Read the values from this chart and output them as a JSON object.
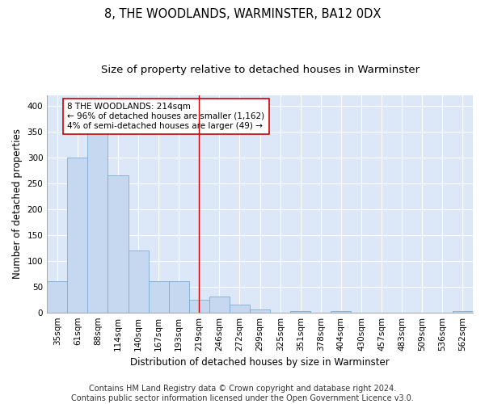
{
  "title": "8, THE WOODLANDS, WARMINSTER, BA12 0DX",
  "subtitle": "Size of property relative to detached houses in Warminster",
  "xlabel": "Distribution of detached houses by size in Warminster",
  "ylabel": "Number of detached properties",
  "categories": [
    "35sqm",
    "61sqm",
    "88sqm",
    "114sqm",
    "140sqm",
    "167sqm",
    "193sqm",
    "219sqm",
    "246sqm",
    "272sqm",
    "299sqm",
    "325sqm",
    "351sqm",
    "378sqm",
    "404sqm",
    "430sqm",
    "457sqm",
    "483sqm",
    "509sqm",
    "536sqm",
    "562sqm"
  ],
  "values": [
    60,
    300,
    370,
    265,
    120,
    60,
    60,
    25,
    30,
    15,
    5,
    0,
    2,
    0,
    2,
    0,
    0,
    0,
    0,
    0,
    2
  ],
  "bar_color": "#c5d8f0",
  "bar_edge_color": "#7aadd4",
  "vline_x_index": 7,
  "vline_color": "#cc0000",
  "annotation_text": "8 THE WOODLANDS: 214sqm\n← 96% of detached houses are smaller (1,162)\n4% of semi-detached houses are larger (49) →",
  "annotation_box_facecolor": "#ffffff",
  "annotation_box_edgecolor": "#cc0000",
  "footer_line1": "Contains HM Land Registry data © Crown copyright and database right 2024.",
  "footer_line2": "Contains public sector information licensed under the Open Government Licence v3.0.",
  "bg_color": "#ffffff",
  "plot_bg_color": "#dce8f8",
  "grid_color": "#ffffff",
  "ylim": [
    0,
    420
  ],
  "yticks": [
    0,
    50,
    100,
    150,
    200,
    250,
    300,
    350,
    400
  ],
  "title_fontsize": 10.5,
  "subtitle_fontsize": 9.5,
  "ylabel_fontsize": 8.5,
  "xlabel_fontsize": 8.5,
  "tick_fontsize": 7.5,
  "annotation_fontsize": 7.5,
  "footer_fontsize": 7
}
